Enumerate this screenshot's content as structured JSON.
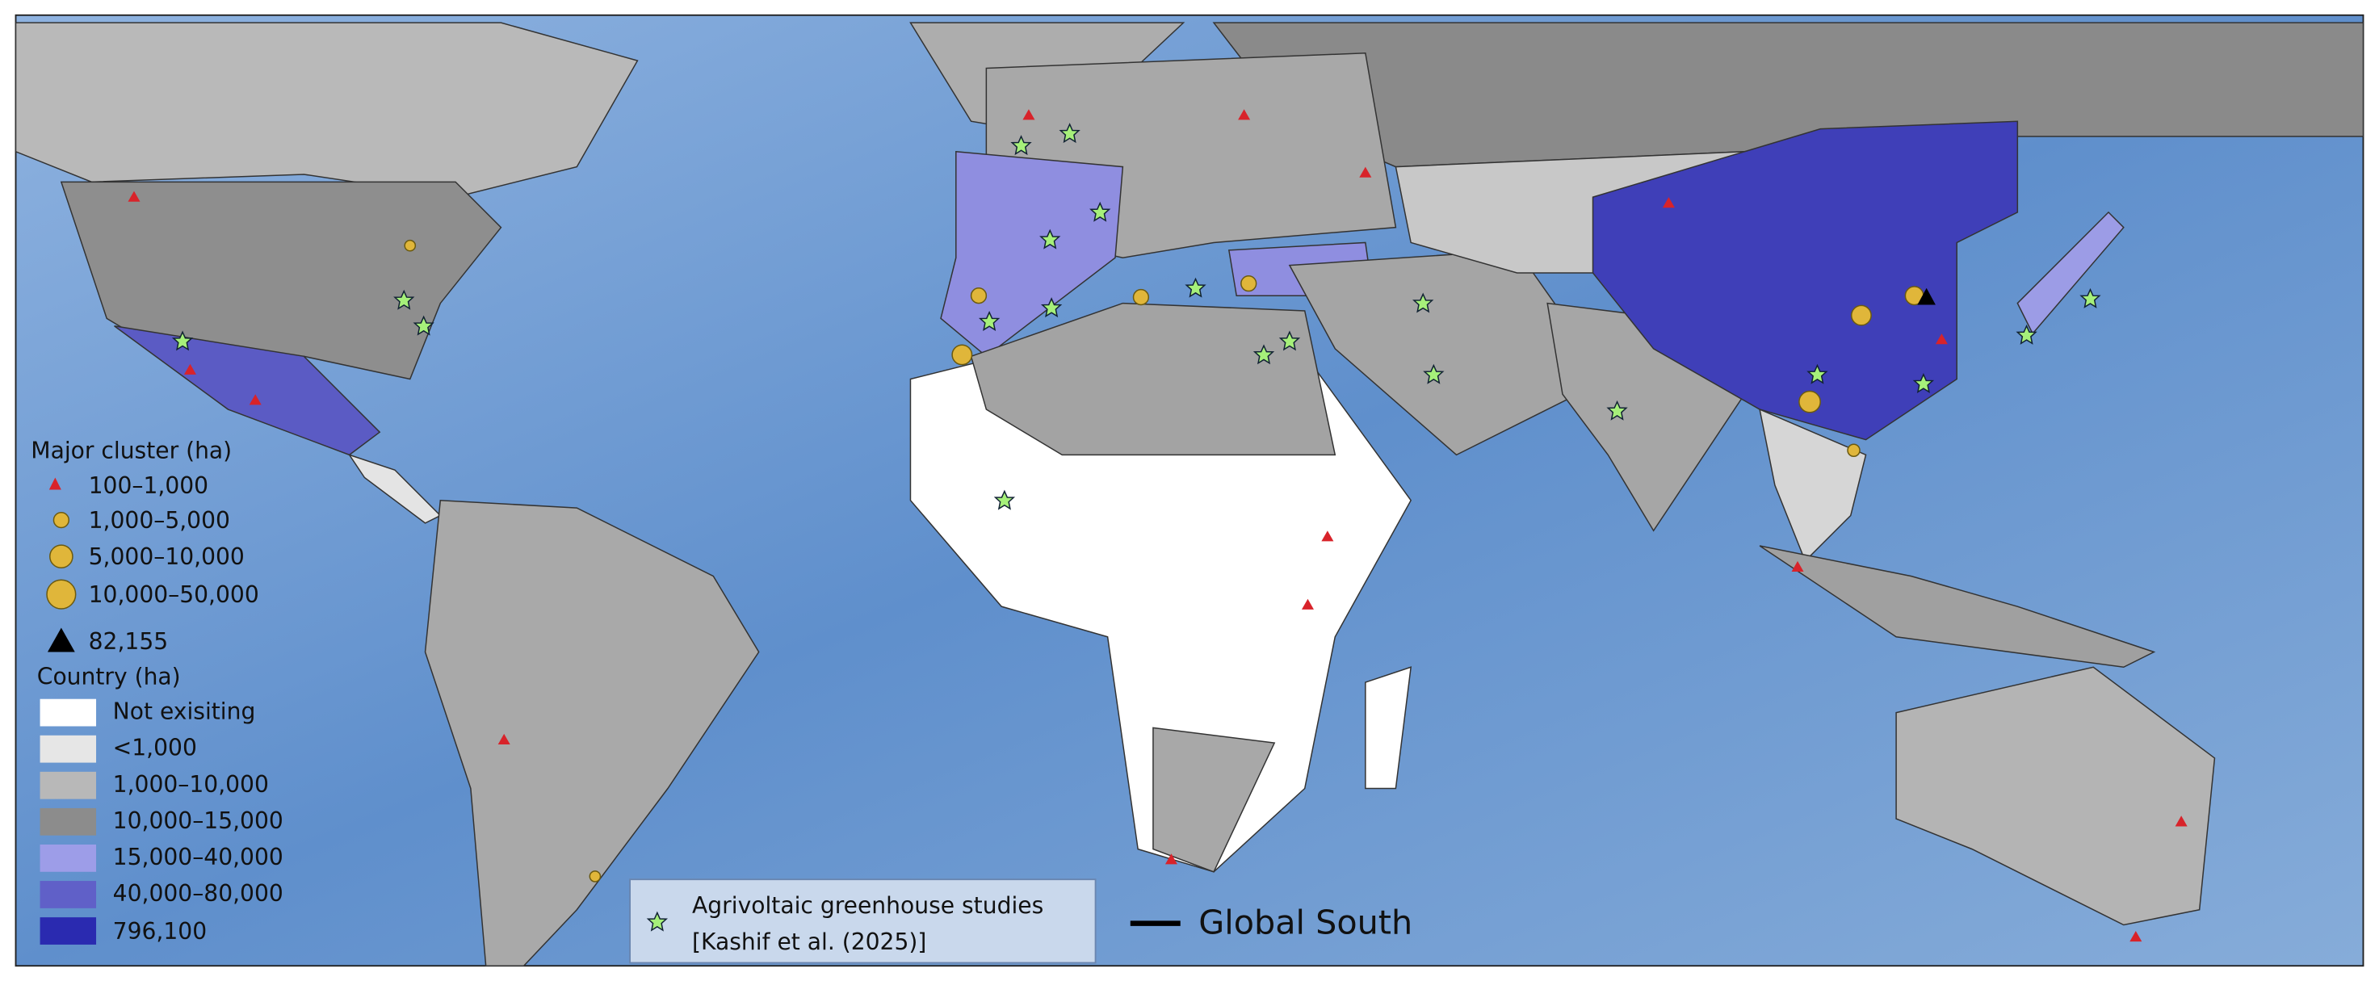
{
  "legend": {
    "cluster_title": "Major cluster (ha)",
    "cluster_items": [
      "100–1,000",
      "1,000–5,000",
      "5,000–10,000",
      "10,000–50,000",
      "82,155"
    ],
    "country_title": "Country (ha)",
    "country_items": [
      "Not exisiting",
      "<1,000",
      "1,000–10,000",
      "10,000–15,000",
      "15,000–40,000",
      "40,000–80,000",
      "796,100"
    ]
  },
  "studies_box": {
    "line1": "Agrivoltaic greenhouse studies",
    "line2": "[Kashif et al. (2025)]"
  },
  "global_south_label": "Global South"
}
